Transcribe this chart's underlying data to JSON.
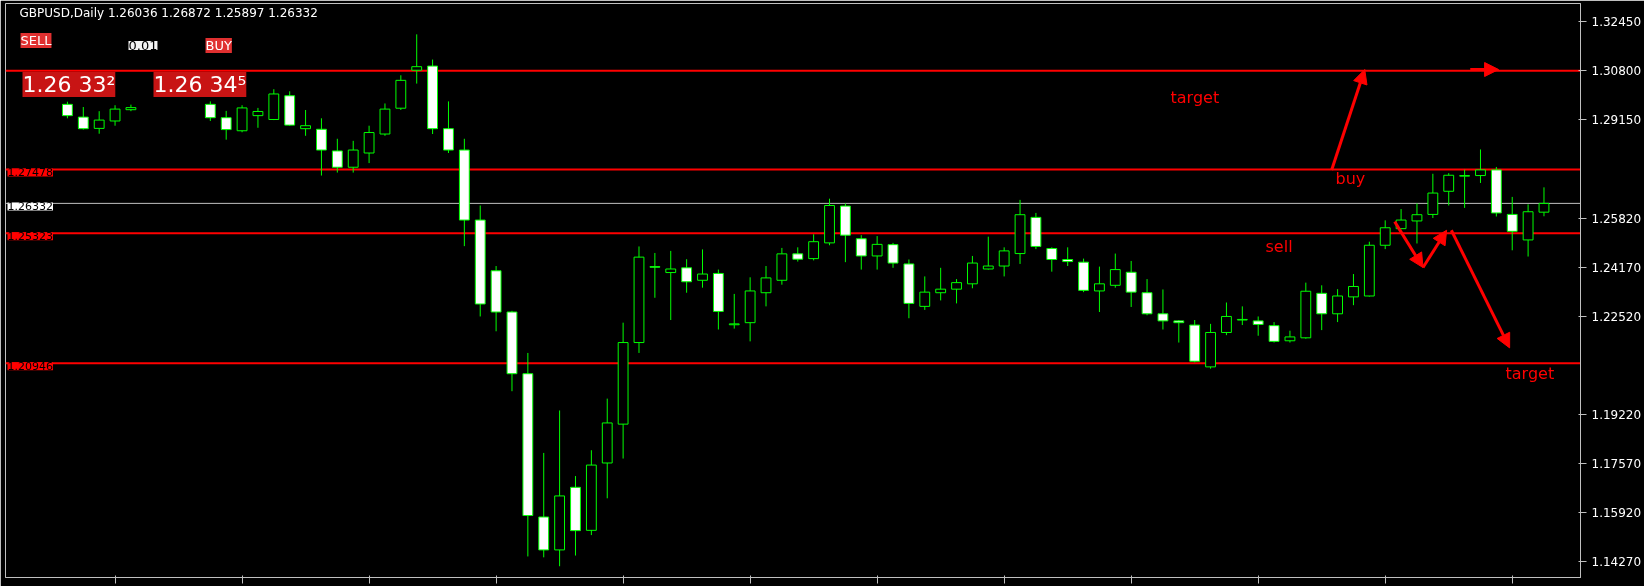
{
  "chart_data": {
    "type": "candlestick",
    "title": "GBPUSD,Daily  1.26036 1.26872 1.25897 1.26332",
    "categories": [
      null,
      null,
      null,
      null,
      null,
      null,
      null,
      null,
      null,
      null,
      null,
      null,
      null,
      null,
      null,
      null,
      null,
      null,
      null,
      null,
      null,
      null,
      null,
      null,
      null,
      null,
      null,
      null,
      null,
      null,
      null,
      null,
      null,
      null,
      null,
      null,
      null,
      null,
      null,
      null,
      null,
      null,
      null,
      null,
      null,
      null,
      null,
      null,
      null,
      null,
      null,
      null,
      null,
      null,
      null,
      null,
      null,
      null,
      null,
      null,
      null,
      null,
      null,
      null,
      null,
      null,
      null,
      null,
      null,
      null,
      null,
      null,
      null,
      null,
      null,
      null,
      null,
      null,
      null,
      null,
      null,
      null,
      null,
      null,
      null,
      null,
      null,
      null,
      null,
      null,
      null,
      null,
      null,
      null,
      null,
      null
    ],
    "ohlc": [
      null,
      null,
      [
        1.2967,
        1.2976,
        1.292,
        1.2929
      ],
      [
        1.2924,
        1.2958,
        1.2882,
        1.2885
      ],
      [
        1.2886,
        1.2944,
        1.2868,
        1.2914
      ],
      [
        1.2911,
        1.2964,
        1.2895,
        1.2951
      ],
      [
        1.2949,
        1.2966,
        1.2944,
        1.2956
      ],
      null,
      null,
      null,
      null,
      [
        1.2967,
        1.2977,
        1.2911,
        1.2922
      ],
      [
        1.2922,
        1.2945,
        1.2848,
        1.2882
      ],
      [
        1.2878,
        1.2964,
        1.2873,
        1.2955
      ],
      [
        1.2929,
        1.2955,
        1.2888,
        1.2943
      ],
      [
        1.2916,
        1.3018,
        1.2914,
        1.3002
      ],
      [
        1.2996,
        1.3011,
        1.2895,
        1.2897
      ],
      [
        1.2885,
        1.2948,
        1.2861,
        1.2895
      ],
      [
        1.2883,
        1.292,
        1.2727,
        1.2813
      ],
      [
        1.281,
        1.2851,
        1.2737,
        1.2755
      ],
      [
        1.2755,
        1.2844,
        1.2737,
        1.2813
      ],
      [
        1.2803,
        1.2895,
        1.2769,
        1.2872
      ],
      [
        1.2867,
        1.297,
        1.2861,
        1.2951
      ],
      [
        1.2954,
        1.3065,
        1.2948,
        1.3048
      ],
      [
        1.3082,
        1.3203,
        1.3037,
        1.3094
      ],
      [
        1.3096,
        1.3118,
        1.2867,
        1.2885
      ],
      [
        1.2885,
        1.2977,
        1.2803,
        1.2813
      ],
      [
        1.2813,
        1.2851,
        1.2489,
        1.2577
      ],
      [
        1.2577,
        1.2626,
        1.2252,
        1.2294
      ],
      [
        1.2406,
        1.2422,
        1.2202,
        1.2267
      ],
      [
        1.2267,
        1.2271,
        1.2,
        1.2059
      ],
      [
        1.2059,
        1.2129,
        1.1443,
        1.1581
      ],
      [
        1.1576,
        1.1792,
        1.144,
        1.1465
      ],
      [
        1.1465,
        1.1935,
        1.141,
        1.1647
      ],
      [
        1.1676,
        1.1714,
        1.1446,
        1.153
      ],
      [
        1.1531,
        1.1801,
        1.1515,
        1.1751
      ],
      [
        1.1758,
        1.1975,
        1.1639,
        1.1893
      ],
      [
        1.1889,
        1.2231,
        1.1773,
        1.2164
      ],
      [
        1.2164,
        1.2488,
        1.2129,
        1.2452
      ],
      [
        1.242,
        1.2466,
        1.2315,
        1.2418
      ],
      [
        1.24,
        1.2473,
        1.224,
        1.2412
      ],
      [
        1.2416,
        1.2445,
        1.2332,
        1.2369
      ],
      [
        1.2374,
        1.2478,
        1.2349,
        1.2395
      ],
      [
        1.2397,
        1.241,
        1.2208,
        1.2269
      ],
      [
        1.2224,
        1.2328,
        1.2211,
        1.2227
      ],
      [
        1.2231,
        1.2384,
        1.2168,
        1.2338
      ],
      [
        1.2332,
        1.2422,
        1.2286,
        1.2382
      ],
      [
        1.2374,
        1.2483,
        1.2359,
        1.2463
      ],
      [
        1.2463,
        1.2485,
        1.2437,
        1.2445
      ],
      [
        1.2447,
        1.2529,
        1.2441,
        1.2504
      ],
      [
        1.25,
        1.2649,
        1.2492,
        1.2626
      ],
      [
        1.2624,
        1.2633,
        1.2435,
        1.2526
      ],
      [
        1.2514,
        1.2526,
        1.241,
        1.2456
      ],
      [
        1.2456,
        1.2523,
        1.241,
        1.2495
      ],
      [
        1.2494,
        1.25,
        1.2416,
        1.2432
      ],
      [
        1.2429,
        1.2444,
        1.2246,
        1.2296
      ],
      [
        1.2286,
        1.2387,
        1.2274,
        1.2334
      ],
      [
        1.2332,
        1.2416,
        1.2306,
        1.2344
      ],
      [
        1.2344,
        1.2378,
        1.2296,
        1.2366
      ],
      [
        1.2362,
        1.2456,
        1.2347,
        1.2432
      ],
      [
        1.2412,
        1.2521,
        1.241,
        1.2422
      ],
      [
        1.2422,
        1.2485,
        1.2387,
        1.2473
      ],
      [
        1.2464,
        1.2645,
        1.2429,
        1.2595
      ],
      [
        1.2586,
        1.2601,
        1.2479,
        1.2488
      ],
      [
        1.2481,
        1.2485,
        1.2403,
        1.2444
      ],
      [
        1.2444,
        1.2485,
        1.2422,
        1.2437
      ],
      [
        1.2435,
        1.2447,
        1.2334,
        1.234
      ],
      [
        1.2338,
        1.242,
        1.2267,
        1.2362
      ],
      [
        1.2357,
        1.2464,
        1.2349,
        1.241
      ],
      [
        1.2401,
        1.2439,
        1.2284,
        1.2334
      ],
      [
        1.2332,
        1.2378,
        1.2256,
        1.2261
      ],
      [
        1.2261,
        1.2343,
        1.2208,
        1.2237
      ],
      [
        1.2237,
        1.224,
        1.2164,
        1.2231
      ],
      [
        1.2223,
        1.224,
        1.2097,
        1.2101
      ],
      [
        1.2082,
        1.2227,
        1.2076,
        1.2198
      ],
      [
        1.2198,
        1.2299,
        1.2189,
        1.2252
      ],
      [
        1.224,
        1.2286,
        1.2223,
        1.2242
      ],
      [
        1.2237,
        1.2252,
        1.2187,
        1.2225
      ],
      [
        1.2221,
        1.2233,
        1.2164,
        1.2168
      ],
      [
        1.217,
        1.2204,
        1.2164,
        1.2183
      ],
      [
        1.218,
        1.2366,
        1.2177,
        1.2337
      ],
      [
        1.233,
        1.2357,
        1.2206,
        1.2261
      ],
      [
        1.2261,
        1.2344,
        1.2233,
        1.2321
      ],
      [
        1.2318,
        1.2395,
        1.229,
        1.2353
      ],
      [
        1.2321,
        1.2504,
        1.2319,
        1.2492
      ],
      [
        1.2492,
        1.2576,
        1.2479,
        1.2551
      ],
      [
        1.2548,
        1.2614,
        1.2546,
        1.2577
      ],
      [
        1.2574,
        1.2633,
        1.2498,
        1.2595
      ],
      [
        1.2596,
        1.2733,
        1.2584,
        1.2668
      ],
      [
        1.2674,
        1.2735,
        1.2626,
        1.2728
      ],
      [
        1.2725,
        1.2747,
        1.2618,
        1.2727
      ],
      [
        1.2727,
        1.2815,
        1.2702,
        1.2746
      ],
      [
        1.2746,
        1.2756,
        1.2589,
        1.2601
      ],
      [
        1.2596,
        1.2655,
        1.2475,
        1.2539
      ],
      [
        1.251,
        1.263,
        1.2454,
        1.2605
      ],
      [
        1.26036,
        1.26872,
        1.25897,
        1.26332
      ]
    ],
    "ylim": [
      1.1372,
      1.3307
    ],
    "yticks": [
      {
        "value": 1.3245,
        "label": "1.32450"
      },
      {
        "value": 1.308,
        "label": "1.30800"
      },
      {
        "value": 1.2915,
        "label": "1.29150"
      },
      {
        "value": 1.2582,
        "label": "1.25820"
      },
      {
        "value": 1.2417,
        "label": "1.24170"
      },
      {
        "value": 1.2252,
        "label": "1.22520"
      },
      {
        "value": 1.1922,
        "label": "1.19220"
      },
      {
        "value": 1.1757,
        "label": "1.17570"
      },
      {
        "value": 1.1592,
        "label": "1.15920"
      },
      {
        "value": 1.1427,
        "label": "1.14270"
      }
    ],
    "tick_labels": "y",
    "grid": false,
    "ref_lines": [
      {
        "axis": "y",
        "value": 1.308,
        "color": "#ff0000"
      },
      {
        "axis": "y",
        "value": 1.27478,
        "label": "1.27478",
        "color": "#ff0000"
      },
      {
        "axis": "y",
        "value": 1.26332,
        "label": "1.26332",
        "color": "#c0c0c0"
      },
      {
        "axis": "y",
        "value": 1.25323,
        "label": "1.25323",
        "color": "#ff0000"
      },
      {
        "axis": "y",
        "value": 1.20946,
        "label": "1.20946",
        "color": "#ff0000"
      }
    ],
    "annotations": [
      "target",
      "buy",
      "sell",
      "target",
      "SELL",
      "0.01",
      "BUY",
      "1.26 33²",
      "1.26 34⁵"
    ]
  }
}
